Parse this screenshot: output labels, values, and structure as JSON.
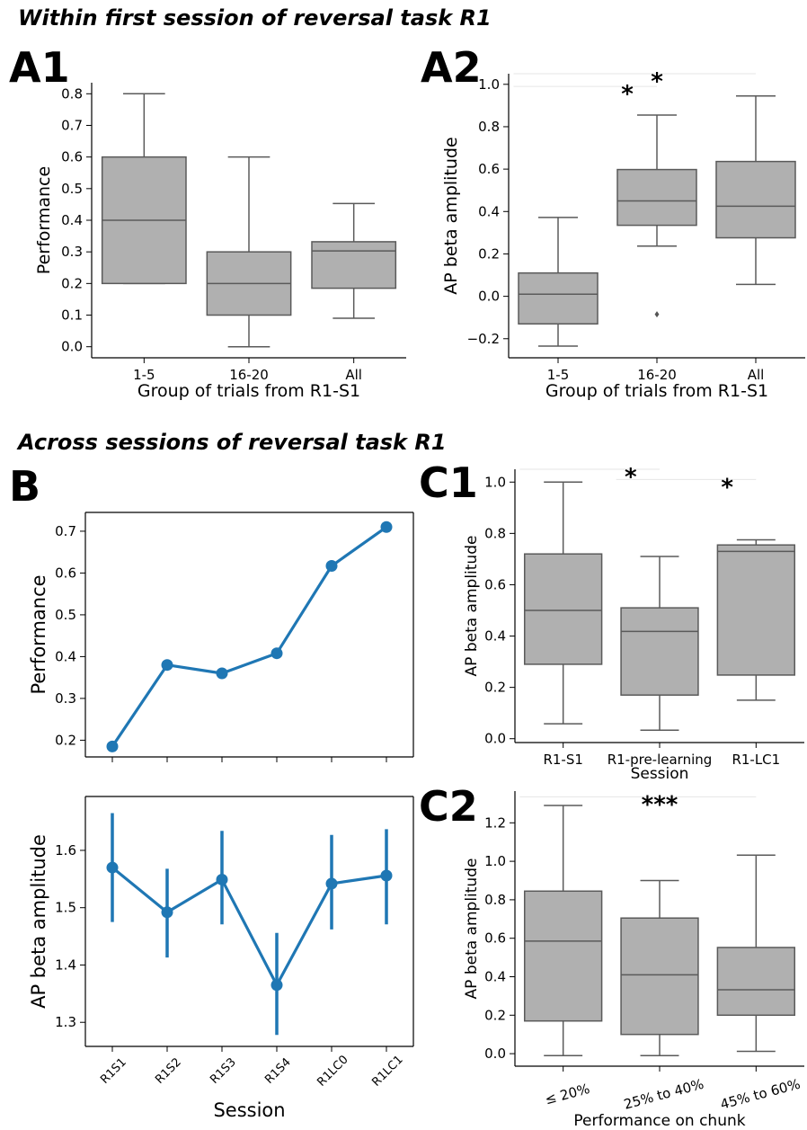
{
  "section_titles": {
    "within": "Within first session of reversal task R1",
    "across": "Across sessions of reversal task R1"
  },
  "panel_labels": {
    "a1": "A1",
    "a2": "A2",
    "b": "B",
    "c1": "C1",
    "c2": "C2"
  },
  "chart_data": [
    {
      "id": "A1",
      "type": "box",
      "categories": [
        "1-5",
        "16-20",
        "All"
      ],
      "xlabel": "Group of trials from R1-S1",
      "ylabel": "Performance",
      "ylim": [
        -0.035,
        0.835
      ],
      "yticks": [
        0.0,
        0.1,
        0.2,
        0.3,
        0.4,
        0.5,
        0.6,
        0.7,
        0.8
      ],
      "ytick_labels": [
        "0.0",
        "0.1",
        "0.2",
        "0.3",
        "0.4",
        "0.5",
        "0.6",
        "0.7",
        "0.8"
      ],
      "boxes": [
        {
          "whislo": 0.2,
          "q1": 0.2,
          "med": 0.4,
          "q3": 0.6,
          "whishi": 0.8,
          "fliers": []
        },
        {
          "whislo": 0.0,
          "q1": 0.1,
          "med": 0.2,
          "q3": 0.3,
          "whishi": 0.6,
          "fliers": []
        },
        {
          "whislo": 0.09,
          "q1": 0.185,
          "med": 0.303,
          "q3": 0.332,
          "whishi": 0.453,
          "fliers": []
        }
      ],
      "significance": []
    },
    {
      "id": "A2",
      "type": "box",
      "categories": [
        "1-5",
        "16-20",
        "All"
      ],
      "xlabel": "Group of trials from R1-S1",
      "ylabel": "AP beta amplitude",
      "ylim": [
        -0.29,
        1.05
      ],
      "yticks": [
        -0.2,
        0.0,
        0.2,
        0.4,
        0.6,
        0.8,
        1.0
      ],
      "ytick_labels": [
        "−0.2",
        "0.0",
        "0.2",
        "0.4",
        "0.6",
        "0.8",
        "1.0"
      ],
      "boxes": [
        {
          "whislo": -0.235,
          "q1": -0.13,
          "med": 0.01,
          "q3": 0.11,
          "whishi": 0.372,
          "fliers": []
        },
        {
          "whislo": 0.237,
          "q1": 0.335,
          "med": 0.45,
          "q3": 0.598,
          "whishi": 0.855,
          "fliers": [
            -0.085
          ]
        },
        {
          "whislo": 0.056,
          "q1": 0.276,
          "med": 0.425,
          "q3": 0.636,
          "whishi": 0.945,
          "fliers": []
        }
      ],
      "significance": [
        {
          "from": 0,
          "to": 1,
          "y": 0.99,
          "label": "*"
        },
        {
          "from": 0,
          "to": 2,
          "y": 1.05,
          "label": "*"
        }
      ]
    },
    {
      "id": "B-top",
      "type": "line",
      "x": [
        "R1S1",
        "R1S2",
        "R1S3",
        "R1S4",
        "R1LC0",
        "R1LC1"
      ],
      "y": [
        0.185,
        0.38,
        0.36,
        0.408,
        0.617,
        0.71
      ],
      "ylabel": "Performance",
      "xlabel": "",
      "ylim": [
        0.16,
        0.745
      ],
      "yticks": [
        0.2,
        0.3,
        0.4,
        0.5,
        0.6,
        0.7
      ],
      "ytick_labels": [
        "0.2",
        "0.3",
        "0.4",
        "0.5",
        "0.6",
        "0.7"
      ],
      "color": "#1f77b4"
    },
    {
      "id": "B-bottom",
      "type": "line",
      "x": [
        "R1S1",
        "R1S2",
        "R1S3",
        "R1S4",
        "R1LC0",
        "R1LC1"
      ],
      "y": [
        1.57,
        1.492,
        1.549,
        1.365,
        1.542,
        1.556
      ],
      "err_low": [
        1.475,
        1.413,
        1.471,
        1.278,
        1.462,
        1.471
      ],
      "err_high": [
        1.665,
        1.568,
        1.634,
        1.456,
        1.627,
        1.637
      ],
      "ylabel": "AP beta amplitude",
      "xlabel": "Session",
      "ylim": [
        1.258,
        1.694
      ],
      "yticks": [
        1.3,
        1.4,
        1.5,
        1.6
      ],
      "ytick_labels": [
        "1.3",
        "1.4",
        "1.5",
        "1.6"
      ],
      "color": "#1f77b4"
    },
    {
      "id": "C1",
      "type": "box",
      "categories": [
        "R1-S1",
        "R1-pre-learning",
        "R1-LC1"
      ],
      "xlabel": "Session",
      "ylabel": "AP beta amplitude",
      "ylim": [
        -0.015,
        1.05
      ],
      "yticks": [
        0.0,
        0.2,
        0.4,
        0.6,
        0.8,
        1.0
      ],
      "ytick_labels": [
        "0.0",
        "0.2",
        "0.4",
        "0.6",
        "0.8",
        "1.0"
      ],
      "boxes": [
        {
          "whislo": 0.058,
          "q1": 0.29,
          "med": 0.5,
          "q3": 0.72,
          "whishi": 1.0,
          "fliers": []
        },
        {
          "whislo": 0.033,
          "q1": 0.17,
          "med": 0.418,
          "q3": 0.51,
          "whishi": 0.71,
          "fliers": []
        },
        {
          "whislo": 0.15,
          "q1": 0.248,
          "med": 0.73,
          "q3": 0.755,
          "whishi": 0.775,
          "fliers": []
        }
      ],
      "significance": [
        {
          "from": 0,
          "to": 1,
          "y": 1.05,
          "label": "*"
        },
        {
          "from": 1,
          "to": 2,
          "y": 1.01,
          "label": "*"
        }
      ]
    },
    {
      "id": "C2",
      "type": "box",
      "categories": [
        "≤ 20%",
        "25% to 40%",
        "45% to 60%"
      ],
      "xlabel": "Performance on chunk",
      "ylabel": "AP beta amplitude",
      "ylim": [
        -0.065,
        1.365
      ],
      "yticks": [
        0.0,
        0.2,
        0.4,
        0.6,
        0.8,
        1.0,
        1.2
      ],
      "ytick_labels": [
        "0.0",
        "0.2",
        "0.4",
        "0.6",
        "0.8",
        "1.0",
        "1.2"
      ],
      "boxes": [
        {
          "whislo": -0.01,
          "q1": 0.17,
          "med": 0.585,
          "q3": 0.845,
          "whishi": 1.29,
          "fliers": []
        },
        {
          "whislo": -0.01,
          "q1": 0.1,
          "med": 0.41,
          "q3": 0.705,
          "whishi": 0.9,
          "fliers": []
        },
        {
          "whislo": 0.012,
          "q1": 0.2,
          "med": 0.332,
          "q3": 0.552,
          "whishi": 1.032,
          "fliers": []
        }
      ],
      "significance": [
        {
          "from": 0,
          "to": 2,
          "y": 1.335,
          "label": "***"
        }
      ]
    }
  ]
}
